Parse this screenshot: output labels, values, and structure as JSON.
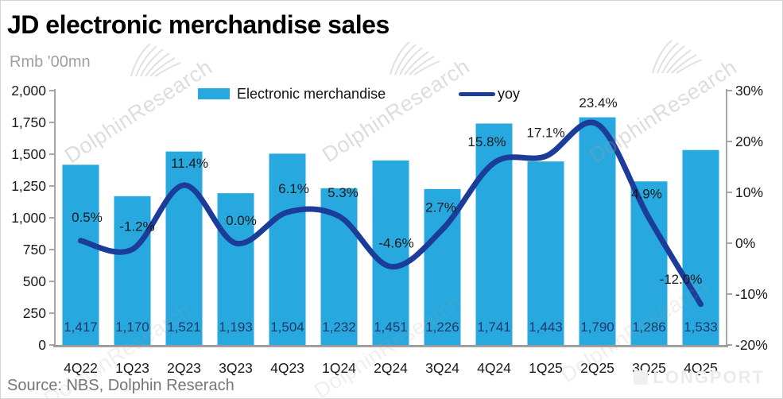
{
  "header": {
    "title": "JD electronic merchandise sales",
    "unit_label": "Rmb '00mn"
  },
  "chart_data": {
    "type": "bar+line",
    "title": "JD electronic merchandise sales",
    "unit": "Rmb '00mn",
    "grid": false,
    "legend_position": "top",
    "categories": [
      "4Q22",
      "1Q23",
      "2Q23",
      "3Q23",
      "4Q23",
      "1Q24",
      "2Q24",
      "3Q24",
      "4Q24",
      "1Q25",
      "2Q25",
      "3Q25",
      "4Q25"
    ],
    "series": [
      {
        "name": "Electronic merchandise",
        "type": "bar",
        "axis": "left",
        "color": "#27A9E0",
        "values": [
          1417,
          1170,
          1521,
          1193,
          1504,
          1232,
          1451,
          1226,
          1741,
          1443,
          1790,
          1286,
          1533
        ],
        "labels": [
          "1,417",
          "1,170",
          "1,521",
          "1,193",
          "1,504",
          "1,232",
          "1,451",
          "1,226",
          "1,741",
          "1,443",
          "1,790",
          "1,286",
          "1,533"
        ]
      },
      {
        "name": "yoy",
        "type": "line",
        "axis": "right",
        "color": "#1B3C98",
        "values": [
          0.5,
          -1.2,
          11.4,
          0.0,
          6.1,
          5.3,
          -4.6,
          2.7,
          15.8,
          17.1,
          23.4,
          4.9,
          -12.0
        ],
        "labels": [
          "0.5%",
          "-1.2%",
          "11.4%",
          "0.0%",
          "6.1%",
          "5.3%",
          "-4.6%",
          "2.7%",
          "15.8%",
          "17.1%",
          "23.4%",
          "4.9%",
          "-12.0%"
        ]
      }
    ],
    "left_axis": {
      "min": 0,
      "max": 2000,
      "step": 250,
      "tick_labels": [
        "2,000",
        "1,750",
        "1,500",
        "1,250",
        "1,000",
        "750",
        "500",
        "250",
        "0"
      ]
    },
    "right_axis": {
      "min": -20,
      "max": 30,
      "step": 10,
      "tick_labels": [
        "30%",
        "20%",
        "10%",
        "0%",
        "-10%",
        "-20%"
      ]
    }
  },
  "footer": {
    "source": "Source: NBS, Dolphin Reserach"
  },
  "watermarks": {
    "diagonal_text": "DolphinResearch",
    "brand_text": "LONGPORT"
  },
  "colors": {
    "bar": "#27A9E0",
    "line": "#1B3C98",
    "bar_label": "#1F3864",
    "axis_line": "#A6A6A6",
    "baseline": "#999999",
    "tick_text": "#1a1a1a",
    "point_label": "#1a1a1a"
  }
}
